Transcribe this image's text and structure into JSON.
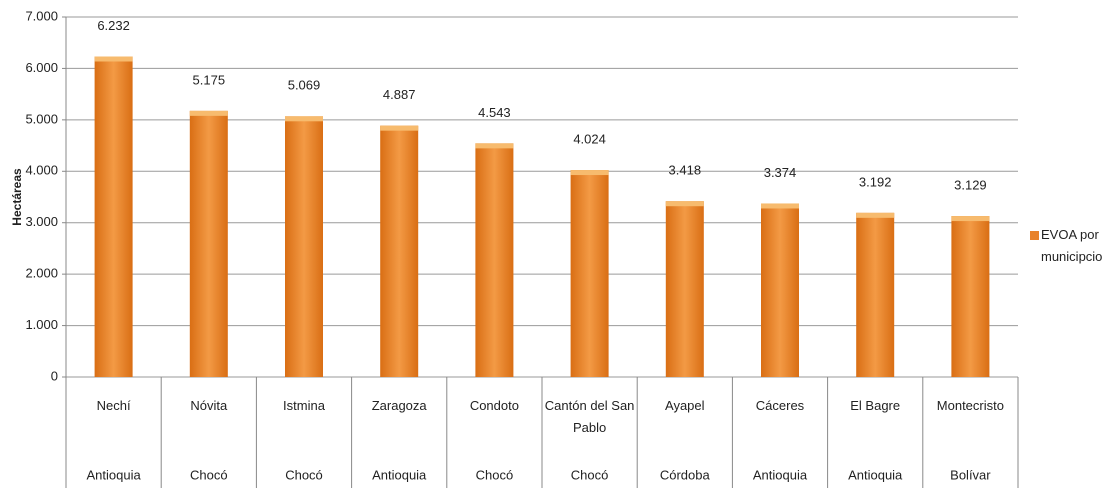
{
  "chart_data": {
    "type": "bar",
    "y_label": "Hectáreas",
    "categories": [
      "Nechí",
      "Nóvita",
      "Istmina",
      "Zaragoza",
      "Condoto",
      "Cantón del San Pablo",
      "Ayapel",
      "Cáceres",
      "El Bagre",
      "Montecristo"
    ],
    "category_groups": [
      "Antioquia",
      "Chocó",
      "Chocó",
      "Antioquia",
      "Chocó",
      "Chocó",
      "Córdoba",
      "Antioquia",
      "Antioquia",
      "Bolívar"
    ],
    "series": [
      {
        "name": "EVOA por municipcio",
        "color": "#e8822a",
        "values": [
          6232,
          5175,
          5069,
          4887,
          4543,
          4024,
          3418,
          3374,
          3192,
          3129
        ],
        "value_labels": [
          "6.232",
          "5.175",
          "5.069",
          "4.887",
          "4.543",
          "4.024",
          "3.418",
          "3.374",
          "3.192",
          "3.129"
        ]
      }
    ],
    "ylim": [
      0,
      7000
    ],
    "yticks": [
      0,
      {
        "value": 1000,
        "label": "1.000"
      },
      {
        "value": 2000,
        "label": "2.000"
      },
      {
        "value": 3000,
        "label": "3.000"
      },
      {
        "value": 4000,
        "label": "4.000"
      },
      {
        "value": 5000,
        "label": "5.000"
      },
      {
        "value": 6000,
        "label": "6.000"
      },
      {
        "value": 7000,
        "label": "7.000"
      }
    ],
    "grid": true,
    "legend": "right"
  }
}
